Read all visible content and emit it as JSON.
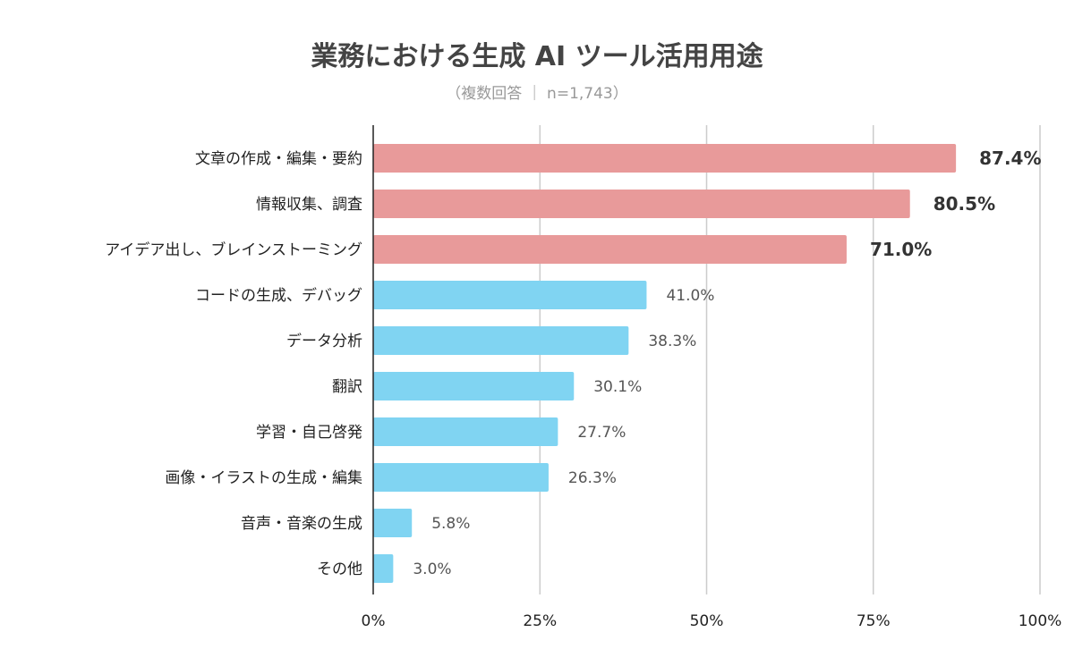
{
  "chart_data": {
    "type": "bar",
    "orientation": "horizontal",
    "title": "業務における生成 AI ツール活用用途",
    "subtitle": "（複数回答 ｜ n=1,743）",
    "categories": [
      "文章の作成・編集・要約",
      "情報収集、調査",
      "アイデア出し、ブレインストーミング",
      "コードの生成、デバッグ",
      "データ分析",
      "翻訳",
      "学習・自己啓発",
      "画像・イラストの生成・編集",
      "音声・音楽の生成",
      "その他"
    ],
    "values": [
      87.4,
      80.5,
      71.0,
      41.0,
      38.3,
      30.1,
      27.7,
      26.3,
      5.8,
      3.0
    ],
    "value_labels": [
      "87.4%",
      "80.5%",
      "71.0%",
      "41.0%",
      "38.3%",
      "30.1%",
      "27.7%",
      "26.3%",
      "5.8%",
      "3.0%"
    ],
    "highlighted": [
      true,
      true,
      true,
      false,
      false,
      false,
      false,
      false,
      false,
      false
    ],
    "xlim": [
      0,
      100
    ],
    "xticks": [
      0,
      25,
      50,
      75,
      100
    ],
    "xtick_labels": [
      "0%",
      "25%",
      "50%",
      "75%",
      "100%"
    ],
    "grid": true,
    "colors": {
      "highlight": "#e89a9a",
      "normal": "#80d4f2",
      "grid": "#cccccc",
      "axis": "#222222"
    }
  }
}
